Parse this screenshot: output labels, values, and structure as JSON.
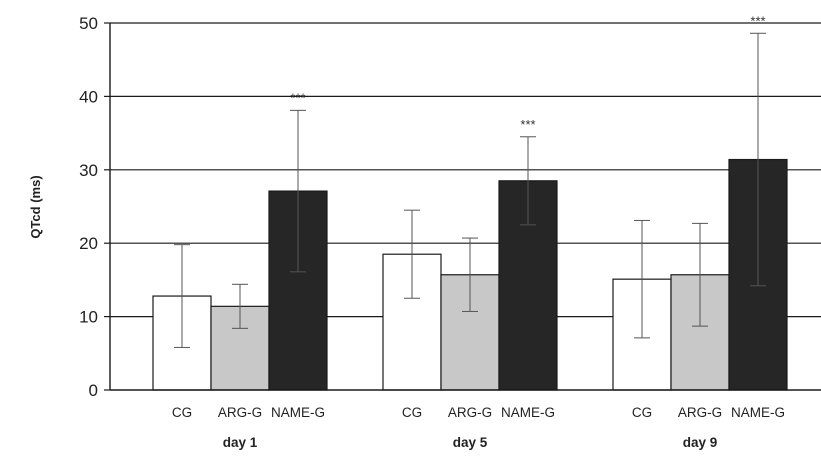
{
  "chart_data": {
    "type": "bar",
    "ylabel": "QTcd (ms)",
    "ylim": [
      0,
      50
    ],
    "yticks": [
      0,
      10,
      20,
      30,
      40,
      50
    ],
    "grid": true,
    "groups": [
      {
        "label": "day 1",
        "bars": [
          {
            "category": "CG",
            "value": 12.8,
            "error": 7.0,
            "significance": ""
          },
          {
            "category": "ARG-G",
            "value": 11.4,
            "error": 3.0,
            "significance": ""
          },
          {
            "category": "NAME-G",
            "value": 27.1,
            "error": 11.0,
            "significance": "***"
          }
        ]
      },
      {
        "label": "day 5",
        "bars": [
          {
            "category": "CG",
            "value": 18.5,
            "error": 6.0,
            "significance": ""
          },
          {
            "category": "ARG-G",
            "value": 15.7,
            "error": 5.0,
            "significance": ""
          },
          {
            "category": "NAME-G",
            "value": 28.5,
            "error": 6.0,
            "significance": "***"
          }
        ]
      },
      {
        "label": "day 9",
        "bars": [
          {
            "category": "CG",
            "value": 15.1,
            "error": 8.0,
            "significance": ""
          },
          {
            "category": "ARG-G",
            "value": 15.7,
            "error": 7.0,
            "significance": ""
          },
          {
            "category": "NAME-G",
            "value": 31.4,
            "error": 17.2,
            "significance": "***"
          }
        ]
      }
    ],
    "colors": {
      "CG": "#ffffff",
      "ARG-G": "#c8c8c8",
      "NAME-G": "#262626",
      "stroke": "#1a1a1a",
      "grid": "#1a1a1a"
    }
  }
}
